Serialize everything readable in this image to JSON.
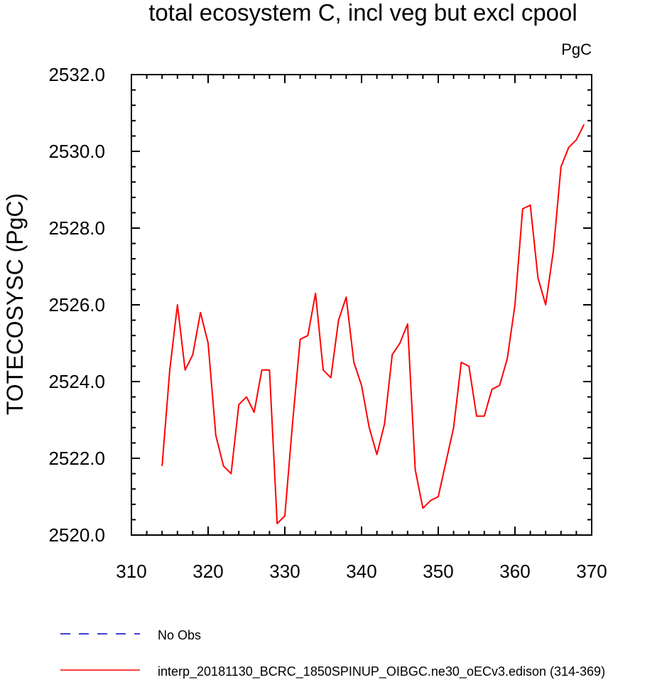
{
  "chart_data": {
    "type": "line",
    "title": "total ecosystem C, incl veg but excl cpool",
    "units_label": "PgC",
    "xlabel": "",
    "ylabel": "TOTECOSYSC  (PgC)",
    "xlim": [
      310,
      370
    ],
    "ylim": [
      2520,
      2532
    ],
    "xticks": [
      310,
      320,
      330,
      340,
      350,
      360,
      370
    ],
    "xtick_labels": [
      "310",
      "320",
      "330",
      "340",
      "350",
      "360",
      "370"
    ],
    "yticks": [
      2520,
      2522,
      2524,
      2526,
      2528,
      2530,
      2532
    ],
    "ytick_labels": [
      "2520.0",
      "2522.0",
      "2524.0",
      "2526.0",
      "2528.0",
      "2530.0",
      "2532.0"
    ],
    "grid": false,
    "legend_position": "bottom",
    "series": [
      {
        "name": "interp_20181130_BCRC_1850SPINUP_OIBGC.ne30_oECv3.edison (314-369)",
        "color": "#ff0000",
        "dash": "solid",
        "x": [
          314,
          315,
          316,
          317,
          318,
          319,
          320,
          321,
          322,
          323,
          324,
          325,
          326,
          327,
          328,
          329,
          330,
          331,
          332,
          333,
          334,
          335,
          336,
          337,
          338,
          339,
          340,
          341,
          342,
          343,
          344,
          345,
          346,
          347,
          348,
          349,
          350,
          351,
          352,
          353,
          354,
          355,
          356,
          357,
          358,
          359,
          360,
          361,
          362,
          363,
          364,
          365,
          366,
          367,
          368,
          369
        ],
        "values": [
          2521.8,
          2524.3,
          2526.0,
          2524.3,
          2524.7,
          2525.8,
          2525.0,
          2522.6,
          2521.8,
          2521.6,
          2523.4,
          2523.6,
          2523.2,
          2524.3,
          2524.3,
          2520.3,
          2520.5,
          2522.9,
          2525.1,
          2525.2,
          2526.3,
          2524.3,
          2524.1,
          2525.6,
          2526.2,
          2524.5,
          2523.9,
          2522.8,
          2522.1,
          2522.9,
          2524.7,
          2525.0,
          2525.5,
          2521.7,
          2520.7,
          2520.9,
          2521.0,
          2521.9,
          2522.8,
          2524.5,
          2524.4,
          2523.1,
          2523.1,
          2523.8,
          2523.9,
          2524.6,
          2526.0,
          2528.5,
          2528.6,
          2526.7,
          2526.0,
          2527.4,
          2529.6,
          2530.1,
          2530.3,
          2530.7
        ]
      }
    ],
    "legend": [
      {
        "label": "No Obs",
        "color": "#0000cc",
        "dash": "dashed"
      },
      {
        "label": "interp_20181130_BCRC_1850SPINUP_OIBGC.ne30_oECv3.edison (314-369)",
        "color": "#ff0000",
        "dash": "solid"
      }
    ]
  }
}
